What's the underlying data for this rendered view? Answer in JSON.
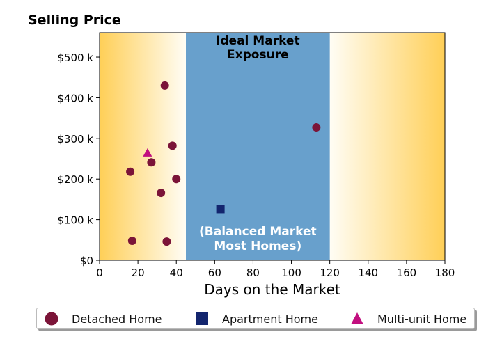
{
  "chart_data": {
    "type": "scatter",
    "title": "Selling Price",
    "xlabel": "Days on the Market",
    "ylabel": "",
    "xlim": [
      0,
      180
    ],
    "ylim": [
      0,
      560000
    ],
    "x_ticks": [
      0,
      20,
      40,
      60,
      80,
      100,
      120,
      140,
      160,
      180
    ],
    "y_ticks": [
      {
        "value": 0,
        "label": "$0"
      },
      {
        "value": 100000,
        "label": "$100 k"
      },
      {
        "value": 200000,
        "label": "$200 k"
      },
      {
        "value": 300000,
        "label": "$300 k"
      },
      {
        "value": 400000,
        "label": "$400 k"
      },
      {
        "value": 500000,
        "label": "$500 k"
      }
    ],
    "grid": false,
    "band": {
      "x_range": [
        45,
        120
      ],
      "color": "#68a0cc",
      "label_top": [
        "Ideal Market",
        "Exposure"
      ],
      "label_bottom": [
        "(Balanced Market",
        "Most Homes)"
      ]
    },
    "background_gradient": {
      "edge_color": "#ffcf57",
      "mid_color": "#fffdf5"
    },
    "legend_position": "bottom",
    "series": [
      {
        "name": "Detached Home",
        "marker": "circle",
        "color": "#7b1438",
        "points": [
          [
            34,
            430000
          ],
          [
            113,
            327000
          ],
          [
            38,
            282000
          ],
          [
            27,
            241000
          ],
          [
            16,
            218000
          ],
          [
            40,
            200000
          ],
          [
            32,
            166000
          ],
          [
            17,
            48000
          ],
          [
            35,
            46000
          ]
        ]
      },
      {
        "name": "Apartment Home",
        "marker": "square",
        "color": "#13256e",
        "points": [
          [
            63,
            126000
          ]
        ]
      },
      {
        "name": "Multi-unit Home",
        "marker": "triangle",
        "color": "#c20f7f",
        "points": [
          [
            25,
            264000
          ]
        ]
      }
    ]
  }
}
